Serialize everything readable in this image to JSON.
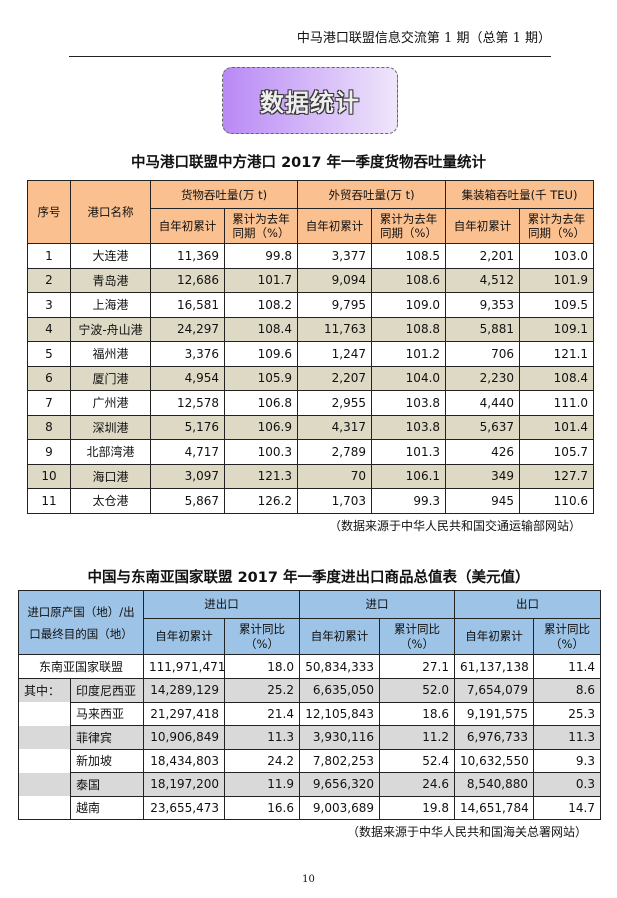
{
  "header": {
    "running_title": "中马港口联盟信息交流第 1 期（总第 1 期）"
  },
  "section_badge": "数据统计",
  "table1": {
    "title": "中马港口联盟中方港口 2017 年一季度货物吞吐量统计",
    "col_no": "序号",
    "col_port": "港口名称",
    "groups": [
      "货物吞吐量(万 t)",
      "外贸吞吐量(万 t)",
      "集装箱吞吐量(千 TEU)"
    ],
    "sub_cum": "自年初累计",
    "sub_pct": "累计为去年同期（%）",
    "rows": [
      [
        "1",
        "大连港",
        "11,369",
        "99.8",
        "3,377",
        "108.5",
        "2,201",
        "103.0"
      ],
      [
        "2",
        "青岛港",
        "12,686",
        "101.7",
        "9,094",
        "108.6",
        "4,512",
        "101.9"
      ],
      [
        "3",
        "上海港",
        "16,581",
        "108.2",
        "9,795",
        "109.0",
        "9,353",
        "109.5"
      ],
      [
        "4",
        "宁波-舟山港",
        "24,297",
        "108.4",
        "11,763",
        "108.8",
        "5,881",
        "109.1"
      ],
      [
        "5",
        "福州港",
        "3,376",
        "109.6",
        "1,247",
        "101.2",
        "706",
        "121.1"
      ],
      [
        "6",
        "厦门港",
        "4,954",
        "105.9",
        "2,207",
        "104.0",
        "2,230",
        "108.4"
      ],
      [
        "7",
        "广州港",
        "12,578",
        "106.8",
        "2,955",
        "103.8",
        "4,440",
        "111.0"
      ],
      [
        "8",
        "深圳港",
        "5,176",
        "106.9",
        "4,317",
        "103.8",
        "5,637",
        "101.4"
      ],
      [
        "9",
        "北部湾港",
        "4,717",
        "100.3",
        "2,789",
        "101.3",
        "426",
        "105.7"
      ],
      [
        "10",
        "海口港",
        "3,097",
        "121.3",
        "70",
        "106.1",
        "349",
        "127.7"
      ],
      [
        "11",
        "太仓港",
        "5,867",
        "126.2",
        "1,703",
        "99.3",
        "945",
        "110.6"
      ]
    ],
    "source": "（数据来源于中华人民共和国交通运输部网站）"
  },
  "table2": {
    "title": "中国与东南亚国家联盟 2017 年一季度进出口商品总值表（美元值）",
    "col_country": "进口原产国（地）/出口最终目的国（地）",
    "groups": [
      "进出口",
      "进口",
      "出口"
    ],
    "sub_cum": "自年初累计",
    "sub_pct": "累计同比（%）",
    "total": [
      "东南亚国家联盟",
      "111,971,471",
      "18.0",
      "50,834,333",
      "27.1",
      "61,137,138",
      "11.4"
    ],
    "of_which": "其中：",
    "rows": [
      [
        "印度尼西亚",
        "14,289,129",
        "25.2",
        "6,635,050",
        "52.0",
        "7,654,079",
        "8.6"
      ],
      [
        "马来西亚",
        "21,297,418",
        "21.4",
        "12,105,843",
        "18.6",
        "9,191,575",
        "25.3"
      ],
      [
        "菲律宾",
        "10,906,849",
        "11.3",
        "3,930,116",
        "11.2",
        "6,976,733",
        "11.3"
      ],
      [
        "新加坡",
        "18,434,803",
        "24.2",
        "7,802,253",
        "52.4",
        "10,632,550",
        "9.3"
      ],
      [
        "泰国",
        "18,197,200",
        "11.9",
        "9,656,320",
        "24.6",
        "8,540,880",
        "0.3"
      ],
      [
        "越南",
        "23,655,473",
        "16.6",
        "9,003,689",
        "19.8",
        "14,651,784",
        "14.7"
      ]
    ],
    "source": "（数据来源于中华人民共和国海关总署网站）"
  },
  "page_number": "10"
}
